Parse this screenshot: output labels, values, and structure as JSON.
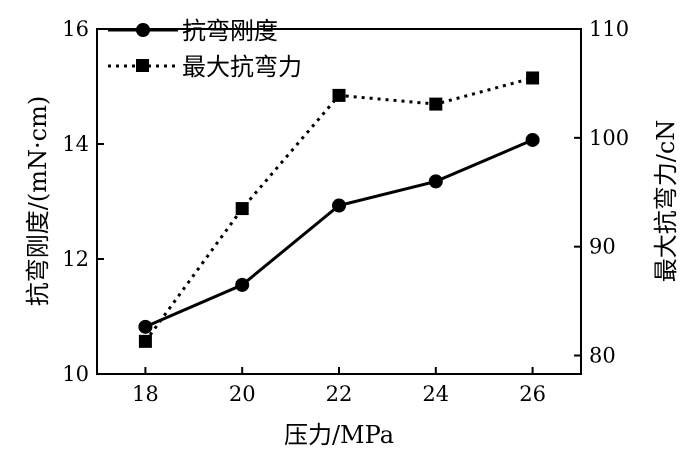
{
  "chart_data": {
    "type": "line",
    "xlabel": "压力/MPa",
    "ylabel_left": "抗弯刚度/(mN·cm)",
    "ylabel_right": "最大抗弯力/cN",
    "x": [
      18,
      20,
      22,
      24,
      26
    ],
    "xlim": [
      17,
      27
    ],
    "ylim_left": [
      10,
      16
    ],
    "ylim_right": [
      78.3,
      110
    ],
    "x_ticks": [
      "18",
      "20",
      "22",
      "24",
      "26"
    ],
    "y_ticks_left": [
      "10",
      "12",
      "14",
      "16"
    ],
    "y_ticks_right": [
      "80",
      "90",
      "100",
      "110"
    ],
    "legend_position": "top-left",
    "grid": false,
    "series": [
      {
        "name": "抗弯刚度",
        "axis": "left",
        "marker": "circle",
        "line_style": "solid",
        "color": "#000000",
        "values": [
          10.82,
          11.55,
          12.93,
          13.35,
          14.07
        ]
      },
      {
        "name": "最大抗弯力",
        "axis": "right",
        "marker": "square",
        "line_style": "dotted",
        "color": "#000000",
        "values": [
          81.3,
          93.5,
          103.9,
          103.1,
          105.5
        ]
      }
    ]
  }
}
